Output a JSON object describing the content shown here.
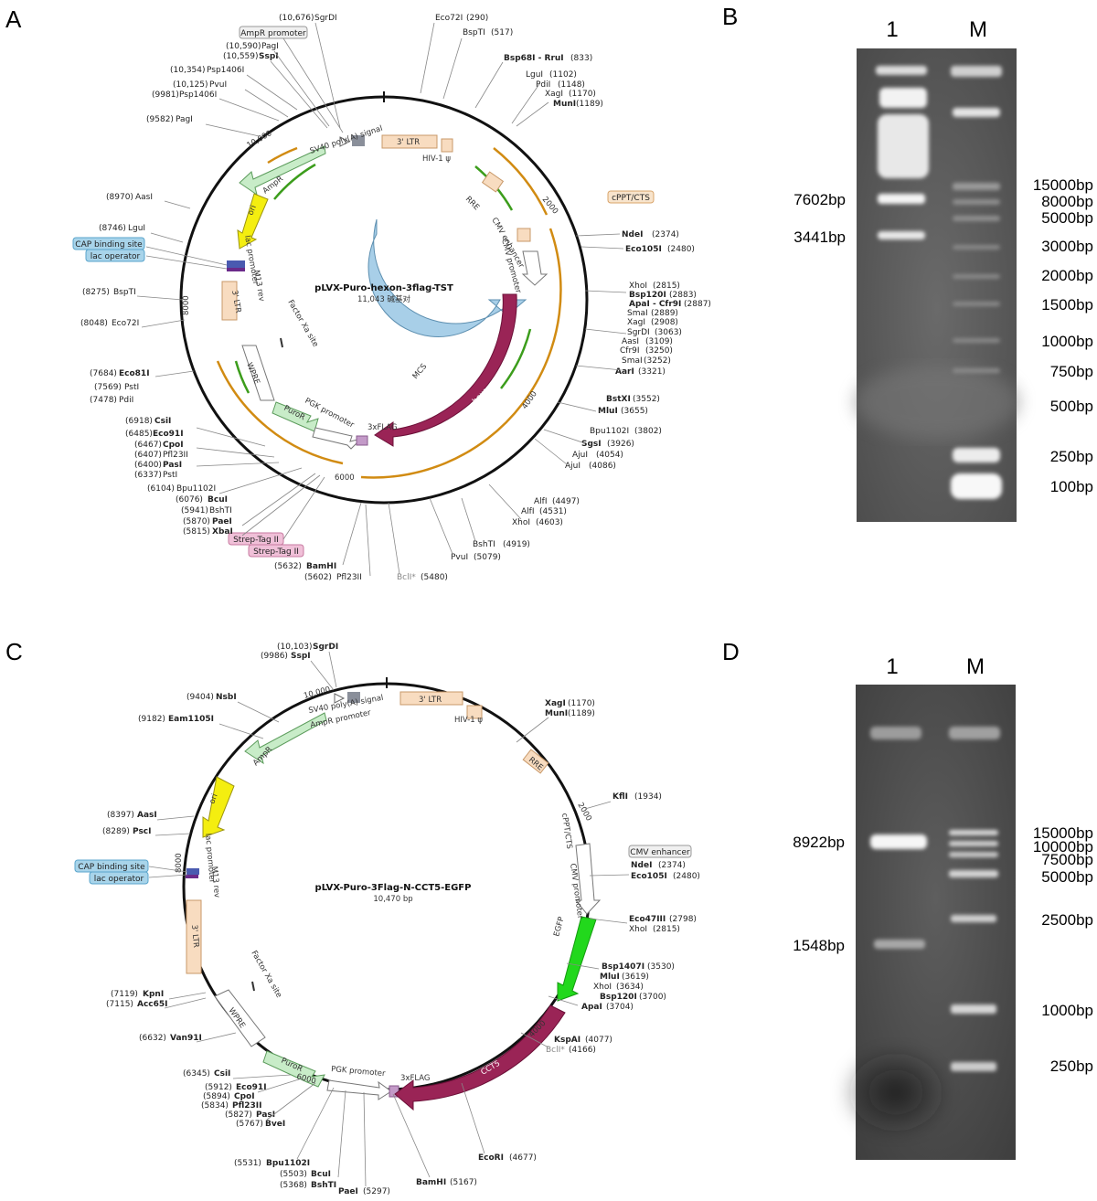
{
  "panels": {
    "A": {
      "letter": "A",
      "name": "pLVX-Puro-hexon-3flag-TST",
      "size_text": "11,043 碱基对",
      "ring_marks": [
        "10,000",
        "2000",
        "4000",
        "6000",
        "8000"
      ],
      "boxed_labels": [
        {
          "text": "AmpR promoter",
          "fill": "#f0f0f0",
          "stroke": "#999999"
        },
        {
          "text": "cPPT/CTS",
          "fill": "#f8e4cc",
          "stroke": "#d9a46a"
        },
        {
          "text": "CAP binding site",
          "fill": "#a8d4ea",
          "stroke": "#5aa5cc"
        },
        {
          "text": "lac operator",
          "fill": "#a8d4ea",
          "stroke": "#5aa5cc"
        },
        {
          "text": "Strep-Tag II",
          "fill": "#f0c0d8",
          "stroke": "#c77aa0"
        },
        {
          "text": "Strep-Tag II",
          "fill": "#f0c0d8",
          "stroke": "#c77aa0"
        }
      ],
      "features": [
        "3' LTR",
        "HIV-1 ψ",
        "RRE",
        "SV40 poly(A) signal",
        "AmpR",
        "ori",
        "lac promoter",
        "M13 rev",
        "3' LTR",
        "Factor Xa site",
        "WPRE",
        "PuroR",
        "PGK promoter",
        "3xFLAG",
        "CMV enhancer",
        "CMV promoter",
        "MCS",
        "hexon"
      ],
      "sites": [
        {
          "pos": "(10,676)",
          "name": "SgrDI"
        },
        {
          "pos": "(10,590)",
          "name": "PagI"
        },
        {
          "pos": "(10,559)",
          "name": "SspI"
        },
        {
          "pos": "(10,354)",
          "name": "Psp1406I"
        },
        {
          "pos": "(10,125)",
          "name": "PvuI"
        },
        {
          "pos": "(9981)",
          "name": "Psp1406I"
        },
        {
          "pos": "(9582)",
          "name": "PagI"
        },
        {
          "pos": "(8970)",
          "name": "AasI"
        },
        {
          "pos": "(8746)",
          "name": "LguI"
        },
        {
          "pos": "(8275)",
          "name": "BspTI"
        },
        {
          "pos": "(8048)",
          "name": "Eco72I"
        },
        {
          "pos": "(7684)",
          "name": "Eco81I"
        },
        {
          "pos": "(7569)",
          "name": "PstI"
        },
        {
          "pos": "(7478)",
          "name": "PdiI"
        },
        {
          "pos": "(6918)",
          "name": "CsiI"
        },
        {
          "pos": "(6485)",
          "name": "Eco91I"
        },
        {
          "pos": "(6467)",
          "name": "CpoI"
        },
        {
          "pos": "(6407)",
          "name": "Pfl23II"
        },
        {
          "pos": "(6400)",
          "name": "PasI"
        },
        {
          "pos": "(6337)",
          "name": "PstI"
        },
        {
          "pos": "(6104)",
          "name": "Bpu1102I"
        },
        {
          "pos": "(6076)",
          "name": "BcuI"
        },
        {
          "pos": "(5941)",
          "name": "BshTI"
        },
        {
          "pos": "(5870)",
          "name": "PaeI"
        },
        {
          "pos": "(5815)",
          "name": "XbaI"
        },
        {
          "pos": "(5632)",
          "name": "BamHI"
        },
        {
          "pos": "(5602)",
          "name": "Pfl23II"
        },
        {
          "pos": "(5480)",
          "name": "BclI*"
        },
        {
          "pos": "(5079)",
          "name": "PvuI"
        },
        {
          "pos": "(4919)",
          "name": "BshTI"
        },
        {
          "pos": "(4603)",
          "name": "XhoI"
        },
        {
          "pos": "(4531)",
          "name": "AlfI"
        },
        {
          "pos": "(4497)",
          "name": "AlfI"
        },
        {
          "pos": "(4086)",
          "name": "AjuI"
        },
        {
          "pos": "(4054)",
          "name": "AjuI"
        },
        {
          "pos": "(3926)",
          "name": "SgsI"
        },
        {
          "pos": "(3802)",
          "name": "Bpu1102I"
        },
        {
          "pos": "(3655)",
          "name": "MluI"
        },
        {
          "pos": "(3552)",
          "name": "BstXI"
        },
        {
          "pos": "(3321)",
          "name": "AarI"
        },
        {
          "pos": "(3252)",
          "name": "SmaI"
        },
        {
          "pos": "(3250)",
          "name": "Cfr9I"
        },
        {
          "pos": "(3109)",
          "name": "AasI"
        },
        {
          "pos": "(3063)",
          "name": "SgrDI"
        },
        {
          "pos": "(2908)",
          "name": "XagI"
        },
        {
          "pos": "(2889)",
          "name": "SmaI"
        },
        {
          "pos": "(2887)",
          "name": "ApaI - Cfr9I"
        },
        {
          "pos": "(2883)",
          "name": "Bsp120I"
        },
        {
          "pos": "(2815)",
          "name": "XhoI"
        },
        {
          "pos": "(2480)",
          "name": "Eco105I"
        },
        {
          "pos": "(2374)",
          "name": "NdeI"
        },
        {
          "pos": "(1189)",
          "name": "MunI"
        },
        {
          "pos": "(1170)",
          "name": "XagI"
        },
        {
          "pos": "(1148)",
          "name": "PdiI"
        },
        {
          "pos": "(1102)",
          "name": "LguI"
        },
        {
          "pos": "(833)",
          "name": "Bsp68I - RruI"
        },
        {
          "pos": "(517)",
          "name": "BspTI"
        },
        {
          "pos": "(290)",
          "name": "Eco72I"
        }
      ]
    },
    "B": {
      "letter": "B",
      "lanes": [
        "1",
        "M"
      ],
      "sample_bands": [
        "7602bp",
        "3441bp"
      ],
      "marker_bands": [
        "15000bp",
        "8000bp",
        "5000bp",
        "3000bp",
        "2000bp",
        "1500bp",
        "1000bp",
        "750bp",
        "500bp",
        "250bp",
        "100bp"
      ]
    },
    "C": {
      "letter": "C",
      "name": "pLVX-Puro-3Flag-N-CCT5-EGFP",
      "size_text": "10,470 bp",
      "ring_marks": [
        "10,000",
        "2000",
        "4000",
        "6000",
        "8000"
      ],
      "boxed_labels": [
        {
          "text": "CMV enhancer",
          "fill": "#f0f0f0",
          "stroke": "#999999"
        },
        {
          "text": "CAP binding site",
          "fill": "#a8d4ea",
          "stroke": "#5aa5cc"
        },
        {
          "text": "lac operator",
          "fill": "#a8d4ea",
          "stroke": "#5aa5cc"
        }
      ],
      "features": [
        "3' LTR",
        "HIV-1 ψ",
        "RRE",
        "SV40 poly(A) signal",
        "AmpR promoter",
        "AmpR",
        "ori",
        "lac promoter",
        "M13 rev",
        "3' LTR",
        "Factor Xa site",
        "WPRE",
        "PuroR",
        "PGK promoter",
        "3xFLAG",
        "cPPT/CTS",
        "CMV promoter",
        "EGFP",
        "CCT5"
      ],
      "sites": [
        {
          "pos": "(10,103)",
          "name": "SgrDI"
        },
        {
          "pos": "(9986)",
          "name": "SspI"
        },
        {
          "pos": "(9404)",
          "name": "NsbI"
        },
        {
          "pos": "(9182)",
          "name": "Eam1105I"
        },
        {
          "pos": "(8397)",
          "name": "AasI"
        },
        {
          "pos": "(8289)",
          "name": "PscI"
        },
        {
          "pos": "(7119)",
          "name": "KpnI"
        },
        {
          "pos": "(7115)",
          "name": "Acc65I"
        },
        {
          "pos": "(6632)",
          "name": "Van91I"
        },
        {
          "pos": "(6345)",
          "name": "CsiI"
        },
        {
          "pos": "(5912)",
          "name": "Eco91I"
        },
        {
          "pos": "(5894)",
          "name": "CpoI"
        },
        {
          "pos": "(5834)",
          "name": "Pfl23II"
        },
        {
          "pos": "(5827)",
          "name": "PasI"
        },
        {
          "pos": "(5767)",
          "name": "BveI"
        },
        {
          "pos": "(5531)",
          "name": "Bpu1102I"
        },
        {
          "pos": "(5503)",
          "name": "BcuI"
        },
        {
          "pos": "(5368)",
          "name": "BshTI"
        },
        {
          "pos": "(5297)",
          "name": "PaeI"
        },
        {
          "pos": "(5167)",
          "name": "BamHI"
        },
        {
          "pos": "(4677)",
          "name": "EcoRI"
        },
        {
          "pos": "(4166)",
          "name": "BclI*"
        },
        {
          "pos": "(4077)",
          "name": "KspAI"
        },
        {
          "pos": "(3704)",
          "name": "ApaI"
        },
        {
          "pos": "(3700)",
          "name": "Bsp120I"
        },
        {
          "pos": "(3634)",
          "name": "XhoI"
        },
        {
          "pos": "(3619)",
          "name": "MluI"
        },
        {
          "pos": "(3530)",
          "name": "Bsp1407I"
        },
        {
          "pos": "(2815)",
          "name": "XhoI"
        },
        {
          "pos": "(2798)",
          "name": "Eco47III"
        },
        {
          "pos": "(2480)",
          "name": "Eco105I"
        },
        {
          "pos": "(2374)",
          "name": "NdeI"
        },
        {
          "pos": "(1934)",
          "name": "KflI"
        },
        {
          "pos": "(1189)",
          "name": "MunI"
        },
        {
          "pos": "(1170)",
          "name": "XagI"
        }
      ]
    },
    "D": {
      "letter": "D",
      "lanes": [
        "1",
        "M"
      ],
      "sample_bands": [
        "8922bp",
        "1548bp"
      ],
      "marker_bands": [
        "15000bp",
        "10000bp",
        "7500bp",
        "5000bp",
        "2500bp",
        "1000bp",
        "250bp"
      ]
    }
  },
  "colors": {
    "hexon": "#9a2456",
    "cct5": "#9a2456",
    "egfp": "#22d81c",
    "mcs": "#a8cfe8",
    "ori": "#f4ee10",
    "ampr": "#c8ecc8",
    "puror": "#c8ecc8",
    "ltr": "#f8dcc0",
    "orange_arc": "#d18b12",
    "green_arc": "#3c9d1c",
    "gel_bg": "#5c5c5c",
    "gel_band": "#f4f4f4"
  }
}
